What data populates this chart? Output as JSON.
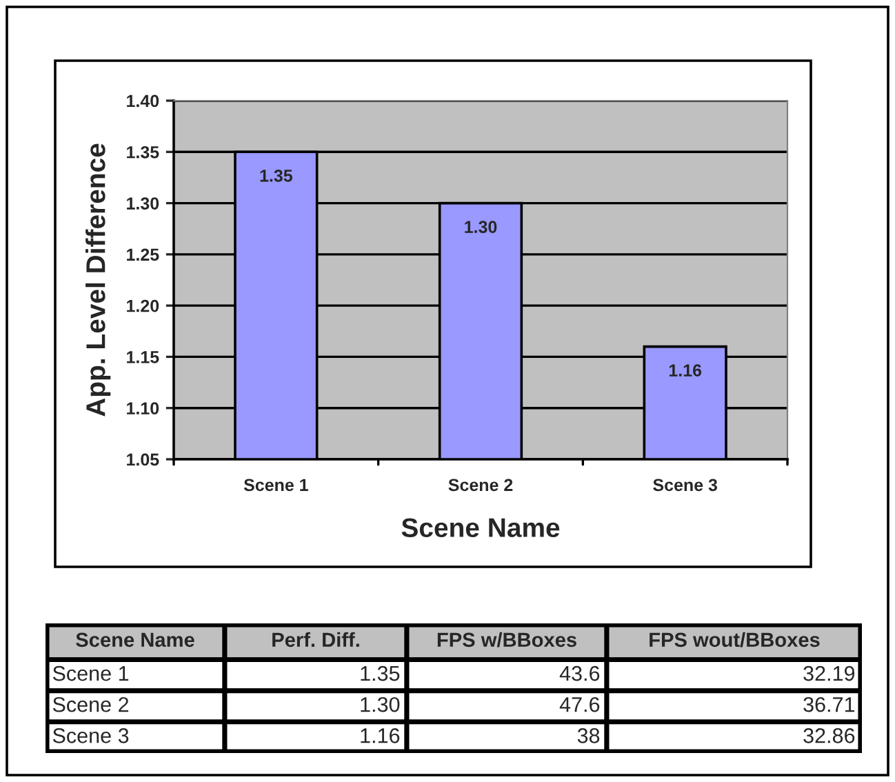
{
  "chart_data": [
    {
      "type": "bar",
      "xlabel": "Scene Name",
      "ylabel": "App. Level Difference",
      "categories": [
        "Scene 1",
        "Scene 2",
        "Scene 3"
      ],
      "series": [
        {
          "color": "#9999ff",
          "values": [
            1.35,
            1.3,
            1.16
          ],
          "value_labels": [
            "1.35",
            "1.30",
            "1.16"
          ]
        }
      ],
      "ylim": [
        1.05,
        1.4
      ],
      "yticks": [
        {
          "value": 1.05,
          "label": "1.05"
        },
        {
          "value": 1.1,
          "label": "1.10"
        },
        {
          "value": 1.15,
          "label": "1.15"
        },
        {
          "value": 1.2,
          "label": "1.20"
        },
        {
          "value": 1.25,
          "label": "1.25"
        },
        {
          "value": 1.3,
          "label": "1.30"
        },
        {
          "value": 1.35,
          "label": "1.35"
        },
        {
          "value": 1.4,
          "label": "1.40"
        }
      ],
      "grid": "y",
      "legend": false
    },
    {
      "type": "other",
      "xlabel": "Scene Name",
      "categories": [
        "Scene 1",
        "Scene 2",
        "Scene 3"
      ],
      "series": [
        {
          "name": "Perf. Diff.",
          "values": [
            1.35,
            1.3,
            1.16
          ],
          "value_labels": [
            "1.35",
            "1.30",
            "1.16"
          ]
        },
        {
          "name": "FPS w/BBoxes",
          "values": [
            43.6,
            47.6,
            38
          ],
          "value_labels": [
            "43.6",
            "47.6",
            "38"
          ]
        },
        {
          "name": "FPS wout/BBoxes",
          "values": [
            32.19,
            36.71,
            32.86
          ],
          "value_labels": [
            "32.19",
            "36.71",
            "32.86"
          ]
        }
      ]
    }
  ]
}
